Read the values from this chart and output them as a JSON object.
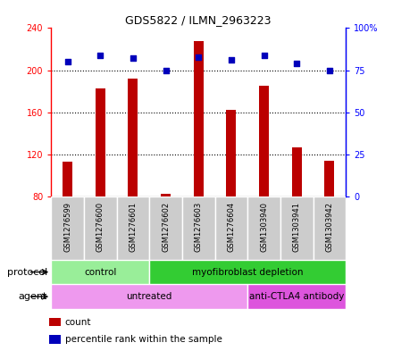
{
  "title": "GDS5822 / ILMN_2963223",
  "samples": [
    "GSM1276599",
    "GSM1276600",
    "GSM1276601",
    "GSM1276602",
    "GSM1276603",
    "GSM1276604",
    "GSM1303940",
    "GSM1303941",
    "GSM1303942"
  ],
  "counts": [
    113,
    183,
    192,
    83,
    228,
    162,
    185,
    127,
    114
  ],
  "percentile_ranks": [
    80,
    84,
    82,
    75,
    83,
    81,
    84,
    79,
    75
  ],
  "ylim_left": [
    80,
    240
  ],
  "ylim_right": [
    0,
    100
  ],
  "yticks_left": [
    80,
    120,
    160,
    200,
    240
  ],
  "yticks_right": [
    0,
    25,
    50,
    75,
    100
  ],
  "ytick_labels_left": [
    "80",
    "120",
    "160",
    "200",
    "240"
  ],
  "ytick_labels_right": [
    "0",
    "25",
    "50",
    "75",
    "100%"
  ],
  "bar_color": "#bb0000",
  "dot_color": "#0000bb",
  "bar_width": 0.3,
  "protocol_groups": [
    {
      "label": "control",
      "start": 0,
      "end": 3,
      "color": "#99ee99"
    },
    {
      "label": "myofibroblast depletion",
      "start": 3,
      "end": 9,
      "color": "#33cc33"
    }
  ],
  "agent_groups": [
    {
      "label": "untreated",
      "start": 0,
      "end": 6,
      "color": "#ee99ee"
    },
    {
      "label": "anti-CTLA4 antibody",
      "start": 6,
      "end": 9,
      "color": "#dd55dd"
    }
  ],
  "legend_items": [
    {
      "label": "count",
      "color": "#bb0000"
    },
    {
      "label": "percentile rank within the sample",
      "color": "#0000bb"
    }
  ],
  "plot_bg": "#ffffff",
  "sample_box_bg": "#cccccc",
  "grid_color": "black",
  "fig_bg": "#ffffff"
}
